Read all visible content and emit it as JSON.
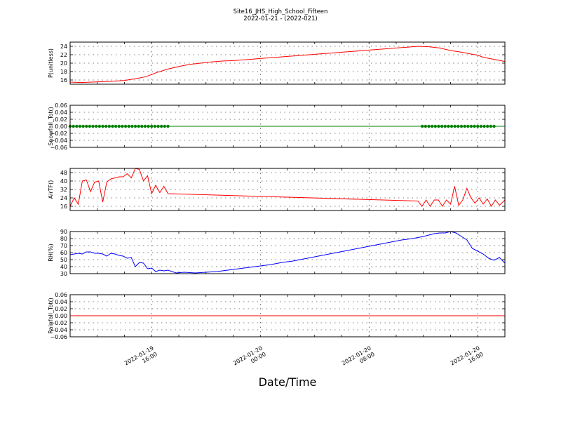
{
  "figure": {
    "title_line1": "Site16_JHS_High_School_Fifteen",
    "title_line2": "2022-01-21 - (2022-021)",
    "xlabel": "Date/Time"
  },
  "chart_data": [
    {
      "type": "line",
      "ylabel": "P(unitless)",
      "ylim": [
        15,
        25
      ],
      "yticks": [
        16,
        18,
        20,
        22,
        24
      ],
      "ytick_labels": [
        "16",
        "18",
        "20",
        "22",
        "24"
      ],
      "grid": true,
      "series": [
        {
          "color": "#ff0000",
          "marker": "none",
          "x": [
            9.0,
            9.4,
            9.8,
            10.2,
            10.6,
            11.0,
            11.4,
            11.8,
            12.2,
            12.6,
            13.0,
            13.4,
            13.8,
            14.2,
            14.6,
            15.0,
            15.4,
            15.8,
            16.2,
            16.6,
            17.0,
            17.4,
            17.8,
            18.2,
            18.6,
            19.0,
            19.4,
            19.8,
            20.2,
            20.6,
            21.0,
            21.4,
            21.8,
            22.2,
            22.6,
            23.0,
            23.4,
            23.8,
            24.0,
            24.2,
            24.6,
            25.0
          ],
          "y": [
            15.5,
            15.4,
            15.5,
            15.6,
            15.7,
            15.9,
            16.3,
            16.8,
            17.8,
            18.6,
            19.2,
            19.7,
            20.0,
            20.3,
            20.5,
            20.6,
            20.8,
            21.0,
            21.2,
            21.4,
            21.6,
            21.8,
            22.0,
            22.2,
            22.4,
            22.6,
            22.8,
            23.0,
            23.2,
            23.4,
            23.6,
            23.8,
            24.0,
            23.9,
            23.6,
            23.0,
            22.6,
            22.1,
            21.9,
            21.4,
            20.9,
            20.4
          ]
        }
      ]
    },
    {
      "type": "line",
      "ylabel": "Snowfall_Tot()",
      "ylim": [
        -0.06,
        0.06
      ],
      "yticks": [
        -0.06,
        -0.04,
        -0.02,
        0.0,
        0.02,
        0.04,
        0.06
      ],
      "ytick_labels": [
        "−0.06",
        "−0.04",
        "−0.02",
        "0.00",
        "0.02",
        "0.04",
        "0.06"
      ],
      "grid": true,
      "series": [
        {
          "color": "#008000",
          "marker": "dot",
          "line_x": [
            9.0,
            25.0
          ],
          "line_y": [
            0.0,
            0.0
          ],
          "x": [
            9.0,
            9.12,
            9.24,
            9.36,
            9.48,
            9.6,
            9.72,
            9.84,
            9.96,
            10.08,
            10.2,
            10.32,
            10.44,
            10.56,
            10.68,
            10.8,
            10.92,
            11.04,
            11.16,
            11.28,
            11.4,
            11.52,
            11.64,
            11.76,
            11.88,
            12.0,
            12.12,
            12.24,
            12.36,
            12.48,
            12.6,
            21.96,
            22.08,
            22.2,
            22.32,
            22.44,
            22.56,
            22.68,
            22.8,
            22.92,
            23.04,
            23.16,
            23.28,
            23.4,
            23.52,
            23.64,
            23.76,
            23.88,
            24.0,
            24.12,
            24.24,
            24.36,
            24.48,
            24.6
          ],
          "y": [
            0,
            0,
            0,
            0,
            0,
            0,
            0,
            0,
            0,
            0,
            0,
            0,
            0,
            0,
            0,
            0,
            0,
            0,
            0,
            0,
            0,
            0,
            0,
            0,
            0,
            0,
            0,
            0,
            0,
            0,
            0,
            0,
            0,
            0,
            0,
            0,
            0,
            0,
            0,
            0,
            0,
            0,
            0,
            0,
            0,
            0,
            0,
            0,
            0,
            0,
            0,
            0,
            0,
            0
          ]
        }
      ]
    },
    {
      "type": "line",
      "ylabel": "AirTF()",
      "ylim": [
        12,
        52
      ],
      "yticks": [
        16,
        24,
        32,
        40,
        48
      ],
      "ytick_labels": [
        "16",
        "24",
        "32",
        "40",
        "48"
      ],
      "grid": true,
      "series": [
        {
          "color": "#ff0000",
          "marker": "none",
          "x": [
            9.0,
            9.15,
            9.3,
            9.45,
            9.6,
            9.75,
            9.9,
            10.05,
            10.2,
            10.35,
            10.5,
            10.65,
            10.8,
            10.95,
            11.1,
            11.25,
            11.4,
            11.55,
            11.7,
            11.85,
            12.0,
            12.15,
            12.3,
            12.45,
            12.6,
            21.8,
            21.95,
            22.1,
            22.25,
            22.4,
            22.55,
            22.7,
            22.85,
            23.0,
            23.15,
            23.3,
            23.45,
            23.6,
            23.75,
            23.9,
            24.05,
            24.2,
            24.35,
            24.5,
            24.65,
            24.8,
            25.0
          ],
          "y": [
            16,
            24,
            18,
            40,
            41,
            30,
            39,
            40,
            20,
            39,
            42,
            43,
            44,
            44,
            47,
            43,
            52,
            51,
            40,
            45,
            28,
            36,
            29,
            35,
            28,
            21,
            16,
            22,
            16,
            22,
            22,
            16,
            22,
            18,
            35,
            17,
            22,
            33,
            24,
            19,
            24,
            18,
            23,
            16,
            22,
            17,
            22
          ]
        }
      ]
    },
    {
      "type": "line",
      "ylabel": "RH(%)",
      "ylim": [
        30,
        90
      ],
      "yticks": [
        30,
        40,
        50,
        60,
        70,
        80,
        90
      ],
      "ytick_labels": [
        "30",
        "40",
        "50",
        "60",
        "70",
        "80",
        "90"
      ],
      "grid": true,
      "series": [
        {
          "color": "#0000ff",
          "marker": "none",
          "x": [
            9.0,
            9.15,
            9.3,
            9.45,
            9.6,
            9.75,
            9.9,
            10.05,
            10.2,
            10.35,
            10.5,
            10.65,
            10.8,
            10.95,
            11.1,
            11.25,
            11.4,
            11.55,
            11.7,
            11.85,
            12.0,
            12.15,
            12.3,
            12.45,
            12.6,
            12.9,
            13.2,
            13.6,
            14.0,
            14.4,
            14.8,
            15.2,
            15.6,
            16.0,
            16.4,
            16.8,
            17.2,
            17.6,
            18.0,
            18.4,
            18.8,
            19.2,
            19.6,
            20.0,
            20.4,
            20.8,
            21.2,
            21.6,
            22.0,
            22.2,
            22.4,
            22.6,
            22.8,
            23.0,
            23.2,
            23.4,
            23.6,
            23.8,
            24.0,
            24.2,
            24.4,
            24.6,
            24.8,
            25.0
          ],
          "y": [
            57,
            58,
            59,
            58,
            61,
            61,
            59,
            59,
            58,
            55,
            59,
            58,
            56,
            55,
            52,
            53,
            40,
            46,
            45,
            37,
            38,
            33,
            35,
            34,
            35,
            31,
            32,
            31,
            32,
            33,
            35,
            37,
            39,
            41,
            43,
            46,
            48,
            51,
            54,
            57,
            60,
            63,
            66,
            69,
            72,
            75,
            78,
            80,
            83,
            85,
            87,
            88,
            88,
            90,
            88,
            83,
            78,
            66,
            62,
            58,
            52,
            49,
            53,
            45
          ]
        }
      ]
    },
    {
      "type": "line",
      "ylabel": "Rainfall_Tot()",
      "ylim": [
        -0.06,
        0.06
      ],
      "yticks": [
        -0.06,
        -0.04,
        -0.02,
        0.0,
        0.02,
        0.04,
        0.06
      ],
      "ytick_labels": [
        "−0.06",
        "−0.04",
        "−0.02",
        "0.00",
        "0.02",
        "0.04",
        "0.06"
      ],
      "grid": true,
      "series": [
        {
          "color": "#ff0000",
          "marker": "none",
          "x": [
            9.0,
            25.0
          ],
          "y": [
            0.0,
            0.0
          ]
        }
      ]
    }
  ],
  "xaxis": {
    "xlim": [
      9.0,
      25.0
    ],
    "ticks": [
      {
        "value": 12.0,
        "line1": "2022-01-19",
        "line2": "16:00"
      },
      {
        "value": 16.0,
        "line1": "2022-01-20",
        "line2": "00:00"
      },
      {
        "value": 20.0,
        "line1": "2022-01-20",
        "line2": "08:00"
      },
      {
        "value": 24.0,
        "line1": "2022-01-20",
        "line2": "16:00"
      }
    ],
    "minor_ticks": [
      10.0,
      11.0,
      12.0,
      13.0,
      14.0,
      15.0,
      16.0,
      17.0,
      18.0,
      19.0,
      20.0,
      21.0,
      22.0,
      23.0,
      24.0
    ]
  }
}
